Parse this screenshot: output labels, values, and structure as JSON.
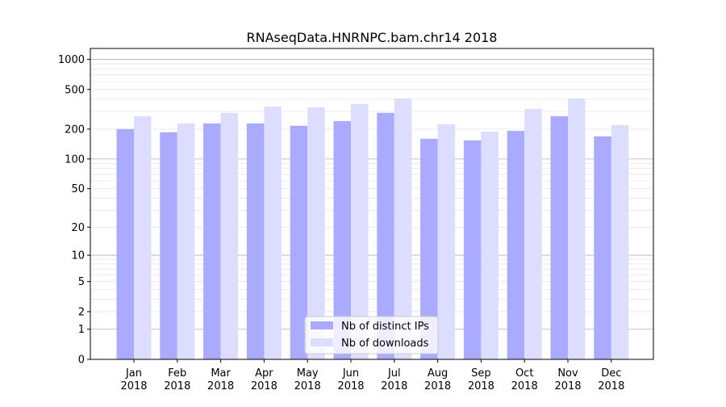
{
  "chart_data": {
    "type": "bar",
    "title": "RNAseqData.HNRNPC.bam.chr14 2018",
    "xlabel": "",
    "ylabel": "",
    "yscale": "log(x+1)",
    "ylim": [
      0,
      1300
    ],
    "yticks": [
      0,
      1,
      2,
      5,
      10,
      20,
      50,
      100,
      200,
      500,
      1000
    ],
    "grid": true,
    "legend_position": "bottom-center",
    "categories": [
      "Jan\n2018",
      "Feb\n2018",
      "Mar\n2018",
      "Apr\n2018",
      "May\n2018",
      "Jun\n2018",
      "Jul\n2018",
      "Aug\n2018",
      "Sep\n2018",
      "Oct\n2018",
      "Nov\n2018",
      "Dec\n2018"
    ],
    "series": [
      {
        "name": "Nb of distinct IPs",
        "color": "#aaaaff",
        "values": [
          200,
          186,
          228,
          228,
          216,
          241,
          291,
          160,
          154,
          192,
          270,
          169
        ]
      },
      {
        "name": "Nb of downloads",
        "color": "#ddddff",
        "values": [
          270,
          228,
          291,
          337,
          331,
          357,
          406,
          224,
          189,
          319,
          406,
          219
        ]
      }
    ]
  }
}
